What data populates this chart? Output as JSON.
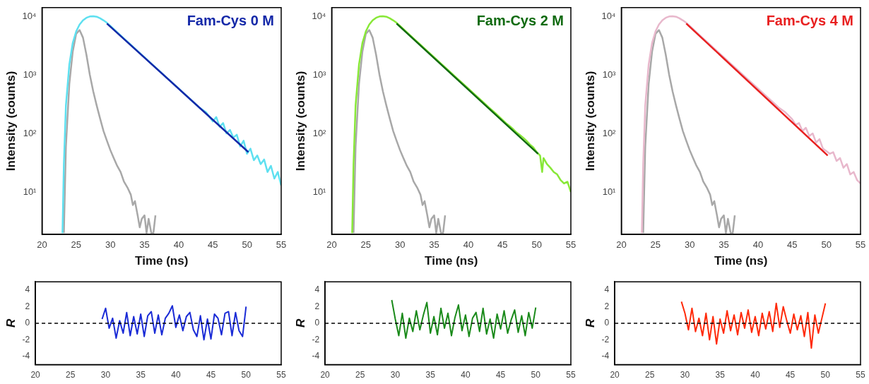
{
  "chart_data": [
    {
      "type": "line",
      "xlabel": "Time (ns)",
      "ylabel": "Intensity (counts)",
      "log": "y",
      "xlim": [
        20,
        55
      ],
      "xticks": [
        20,
        25,
        30,
        35,
        40,
        45,
        50,
        55
      ],
      "ylim": [
        1.9,
        14000
      ],
      "yticks": [
        {
          "value": 10,
          "label": "10¹"
        },
        {
          "value": 100,
          "label": "10²"
        },
        {
          "value": 1000,
          "label": "10³"
        },
        {
          "value": 10000,
          "label": "10⁴"
        }
      ],
      "legend": "top right",
      "series": [
        {
          "color": "#a8a8a8",
          "x": [
            23.2,
            23.5,
            24,
            24.5,
            25,
            25.5,
            26,
            26.5,
            27,
            27.5,
            28,
            28.5,
            29,
            29.5,
            30,
            30.5,
            31,
            31.5,
            32,
            32.5,
            33,
            33.3,
            33.6,
            34,
            34.3,
            34.6,
            35,
            35.3,
            35.6,
            36,
            36.3,
            36.6
          ],
          "values": [
            2,
            60,
            700,
            2500,
            5000,
            5800,
            4300,
            2200,
            1000,
            520,
            300,
            180,
            110,
            75,
            52,
            38,
            28,
            22,
            15,
            12,
            9,
            6,
            7,
            4,
            2.5,
            3.5,
            4,
            2,
            3.5,
            2,
            2,
            4
          ]
        },
        {
          "color": "#5ee0f0",
          "x": [
            23.0,
            23.2,
            23.5,
            24,
            24.5,
            25,
            25.5,
            26,
            26.5,
            27,
            27.5,
            28,
            28.5,
            29,
            29.5,
            30,
            31,
            32,
            33,
            34,
            35,
            36,
            37,
            38,
            39,
            40,
            41,
            42,
            43,
            44,
            45,
            45.5,
            46,
            46.5,
            47,
            47.5,
            48,
            48.5,
            49,
            49.5,
            50,
            50.5,
            51,
            51.5,
            52,
            52.5,
            53,
            53.5,
            54,
            54.5,
            55
          ],
          "values": [
            2,
            30,
            300,
            1500,
            3500,
            5500,
            7200,
            8500,
            9400,
            9900,
            10000,
            9800,
            9200,
            8500,
            7700,
            6810,
            5320,
            4160,
            3250,
            2540,
            1990,
            1555,
            1216,
            951,
            744,
            582,
            455,
            356,
            278,
            230,
            160,
            190,
            130,
            150,
            100,
            115,
            85,
            95,
            60,
            75,
            45,
            55,
            35,
            42,
            30,
            36,
            22,
            28,
            17,
            22,
            13
          ]
        },
        {
          "name": "Fam-Cys 0 M",
          "color": "#1428a8",
          "x": [
            29.5,
            50.2
          ],
          "values": [
            7500,
            48
          ]
        }
      ]
    },
    {
      "type": "line",
      "xlabel": "Time (ns)",
      "ylabel": "Intensity (counts)",
      "log": "y",
      "xlim": [
        20,
        55
      ],
      "xticks": [
        20,
        25,
        30,
        35,
        40,
        45,
        50,
        55
      ],
      "ylim": [
        1.9,
        14000
      ],
      "yticks": [
        {
          "value": 10,
          "label": "10¹"
        },
        {
          "value": 100,
          "label": "10²"
        },
        {
          "value": 1000,
          "label": "10³"
        },
        {
          "value": 10000,
          "label": "10⁴"
        }
      ],
      "legend": "top right",
      "series": [
        {
          "color": "#a8a8a8",
          "x": [
            23.2,
            23.5,
            24,
            24.5,
            25,
            25.5,
            26,
            26.5,
            27,
            27.5,
            28,
            28.5,
            29,
            29.5,
            30,
            30.5,
            31,
            31.5,
            32,
            32.5,
            33,
            33.3,
            33.6,
            34,
            34.3,
            34.6,
            35,
            35.3,
            35.6,
            36,
            36.3,
            36.6
          ],
          "values": [
            2,
            60,
            700,
            2500,
            5000,
            5800,
            4300,
            2200,
            1000,
            520,
            300,
            180,
            110,
            75,
            52,
            38,
            28,
            22,
            15,
            12,
            9,
            6,
            7,
            4,
            2.5,
            3.5,
            4,
            2,
            3.5,
            2,
            2,
            4
          ]
        },
        {
          "color": "#88e838",
          "x": [
            23.0,
            23.2,
            23.5,
            24,
            24.5,
            25,
            25.5,
            26,
            26.5,
            27,
            27.5,
            28,
            28.5,
            29,
            29.5,
            30,
            31,
            32,
            33,
            34,
            35,
            36,
            37,
            38,
            39,
            40,
            41,
            42,
            43,
            44,
            45,
            45.5,
            46,
            46.5,
            47,
            47.5,
            48,
            48.5,
            49,
            49.5,
            50,
            50.5,
            50.8,
            51,
            51.5,
            52,
            52.5,
            53,
            53.5,
            54,
            54.5,
            55
          ],
          "values": [
            2,
            30,
            300,
            1500,
            3500,
            5500,
            7200,
            8500,
            9400,
            9900,
            10000,
            9800,
            9200,
            8500,
            7700,
            6810,
            5320,
            4160,
            3250,
            2540,
            1990,
            1555,
            1216,
            951,
            744,
            582,
            455,
            356,
            278,
            220,
            170,
            150,
            135,
            120,
            105,
            95,
            85,
            75,
            65,
            58,
            48,
            42,
            22,
            38,
            30,
            26,
            22,
            20,
            16,
            14,
            15,
            10
          ]
        },
        {
          "name": "Fam-Cys 2 M",
          "color": "#106a10",
          "x": [
            29.5,
            50.2
          ],
          "values": [
            7500,
            45
          ]
        }
      ]
    },
    {
      "type": "line",
      "xlabel": "Time (ns)",
      "ylabel": "Intensity (counts)",
      "log": "y",
      "xlim": [
        20,
        55
      ],
      "xticks": [
        20,
        25,
        30,
        35,
        40,
        45,
        50,
        55
      ],
      "ylim": [
        1.9,
        14000
      ],
      "yticks": [
        {
          "value": 10,
          "label": "10¹"
        },
        {
          "value": 100,
          "label": "10²"
        },
        {
          "value": 1000,
          "label": "10³"
        },
        {
          "value": 10000,
          "label": "10⁴"
        }
      ],
      "legend": "top right",
      "series": [
        {
          "color": "#a8a8a8",
          "x": [
            23.2,
            23.5,
            24,
            24.5,
            25,
            25.5,
            26,
            26.5,
            27,
            27.5,
            28,
            28.5,
            29,
            29.5,
            30,
            30.5,
            31,
            31.5,
            32,
            32.5,
            33,
            33.3,
            33.6,
            34,
            34.3,
            34.6,
            35,
            35.3,
            35.6,
            36,
            36.3,
            36.6
          ],
          "values": [
            2,
            60,
            700,
            2500,
            5000,
            5800,
            4300,
            2200,
            1000,
            520,
            300,
            180,
            110,
            75,
            52,
            38,
            28,
            22,
            15,
            12,
            9,
            6,
            7,
            4,
            2.5,
            3.5,
            4,
            2,
            3.5,
            2,
            2,
            4
          ]
        },
        {
          "color": "#e8b8cc",
          "x": [
            23.0,
            23.2,
            23.5,
            24,
            24.5,
            25,
            25.5,
            26,
            26.5,
            27,
            27.5,
            28,
            28.5,
            29,
            29.5,
            30,
            31,
            32,
            33,
            34,
            35,
            36,
            37,
            38,
            39,
            40,
            41,
            42,
            43,
            44,
            45,
            45.5,
            46,
            46.5,
            47,
            47.5,
            48,
            48.5,
            49,
            49.5,
            50,
            50.5,
            51,
            51.5,
            52,
            52.5,
            53,
            53.5,
            54,
            54.5,
            55
          ],
          "values": [
            2,
            30,
            300,
            1500,
            3500,
            5500,
            7200,
            8500,
            9400,
            9900,
            10000,
            9800,
            9200,
            8500,
            7700,
            6810,
            5320,
            4160,
            3250,
            2540,
            1990,
            1555,
            1216,
            951,
            744,
            582,
            455,
            356,
            278,
            230,
            175,
            140,
            150,
            110,
            125,
            90,
            100,
            70,
            80,
            55,
            50,
            45,
            48,
            34,
            38,
            26,
            30,
            20,
            22,
            16,
            14
          ]
        },
        {
          "name": "Fam-Cys 4 M",
          "color": "#e82020",
          "x": [
            29.5,
            50.2
          ],
          "values": [
            7500,
            42
          ]
        }
      ]
    },
    {
      "type": "line",
      "ylabel": "R",
      "xlim": [
        20,
        55
      ],
      "xticks": [
        20,
        25,
        30,
        35,
        40,
        45,
        50,
        55
      ],
      "ylim": [
        -5,
        5
      ],
      "yticks": [
        -4,
        -2,
        0,
        2,
        4
      ],
      "ref_lines": [
        {
          "axis": "y",
          "value": 0,
          "line_style": "dashed",
          "color": "#000000"
        }
      ],
      "series": [
        {
          "color": "#1a2bd6",
          "x": [
            29.5,
            30,
            30.5,
            31,
            31.5,
            32,
            32.5,
            33,
            33.5,
            34,
            34.5,
            35,
            35.5,
            36,
            36.5,
            37,
            37.5,
            38,
            38.5,
            39,
            39.5,
            40,
            40.5,
            41,
            41.5,
            42,
            42.5,
            43,
            43.5,
            44,
            44.5,
            45,
            45.5,
            46,
            46.5,
            47,
            47.5,
            48,
            48.5,
            49,
            49.5,
            50
          ],
          "values": [
            0.5,
            1.8,
            -0.6,
            0.6,
            -1.8,
            0.3,
            -1.2,
            1.3,
            -1.5,
            0.8,
            -1.3,
            1.1,
            -1.6,
            0.9,
            1.4,
            -1.2,
            1.0,
            -1.4,
            0.6,
            1.2,
            2.1,
            -0.5,
            1.0,
            -0.9,
            0.8,
            1.3,
            -0.8,
            -1.6,
            0.9,
            -2.0,
            0.5,
            -1.9,
            1.1,
            0.6,
            -1.4,
            1.2,
            1.4,
            -1.5,
            1.3,
            -0.9,
            -1.6,
            2.0
          ]
        }
      ]
    },
    {
      "type": "line",
      "ylabel": "R",
      "xlim": [
        20,
        55
      ],
      "xticks": [
        20,
        25,
        30,
        35,
        40,
        45,
        50,
        55
      ],
      "ylim": [
        -5,
        5
      ],
      "yticks": [
        -4,
        -2,
        0,
        2,
        4
      ],
      "ref_lines": [
        {
          "axis": "y",
          "value": 0,
          "line_style": "dashed",
          "color": "#000000"
        }
      ],
      "series": [
        {
          "color": "#1a8a1a",
          "x": [
            29.5,
            30,
            30.5,
            31,
            31.5,
            32,
            32.5,
            33,
            33.5,
            34,
            34.5,
            35,
            35.5,
            36,
            36.5,
            37,
            37.5,
            38,
            38.5,
            39,
            39.5,
            40,
            40.5,
            41,
            41.5,
            42,
            42.5,
            43,
            43.5,
            44,
            44.5,
            45,
            45.5,
            46,
            46.5,
            47,
            47.5,
            48,
            48.5,
            49,
            49.5,
            50
          ],
          "values": [
            2.8,
            0.5,
            -1.5,
            1.2,
            -1.8,
            0.6,
            -1.0,
            1.5,
            -0.8,
            1.0,
            2.5,
            -1.2,
            0.8,
            -1.4,
            1.8,
            -0.6,
            1.2,
            -1.5,
            0.7,
            2.2,
            -0.9,
            1.0,
            -1.6,
            0.6,
            1.3,
            -1.0,
            1.8,
            -1.3,
            0.5,
            -1.8,
            1.1,
            -0.7,
            1.5,
            -1.2,
            0.4,
            1.6,
            -1.1,
            0.9,
            -1.5,
            1.3,
            -0.6,
            1.9
          ]
        }
      ]
    },
    {
      "type": "line",
      "ylabel": "R",
      "xlim": [
        20,
        55
      ],
      "xticks": [
        20,
        25,
        30,
        35,
        40,
        45,
        50,
        55
      ],
      "ylim": [
        -5,
        5
      ],
      "yticks": [
        -4,
        -2,
        0,
        2,
        4
      ],
      "ref_lines": [
        {
          "axis": "y",
          "value": 0,
          "line_style": "dashed",
          "color": "#000000"
        }
      ],
      "series": [
        {
          "color": "#ff2a0a",
          "x": [
            29.5,
            30,
            30.5,
            31,
            31.5,
            32,
            32.5,
            33,
            33.5,
            34,
            34.5,
            35,
            35.5,
            36,
            36.5,
            37,
            37.5,
            38,
            38.5,
            39,
            39.5,
            40,
            40.5,
            41,
            41.5,
            42,
            42.5,
            43,
            43.5,
            44,
            44.5,
            45,
            45.5,
            46,
            46.5,
            47,
            47.5,
            48,
            48.5,
            49,
            49.5,
            50
          ],
          "values": [
            2.6,
            1.2,
            -0.8,
            1.8,
            -1.0,
            0.6,
            -1.5,
            1.2,
            -2.0,
            0.8,
            -2.5,
            0.5,
            -1.2,
            1.5,
            -0.9,
            1.0,
            -1.4,
            1.3,
            -0.6,
            1.6,
            -1.1,
            0.8,
            -1.5,
            1.2,
            -0.7,
            1.4,
            -1.0,
            2.4,
            -0.5,
            2.0,
            0.3,
            -1.2,
            1.1,
            -0.8,
            0.9,
            -1.6,
            1.3,
            -3.0,
            1.0,
            -1.2,
            0.6,
            2.4
          ]
        }
      ]
    }
  ]
}
